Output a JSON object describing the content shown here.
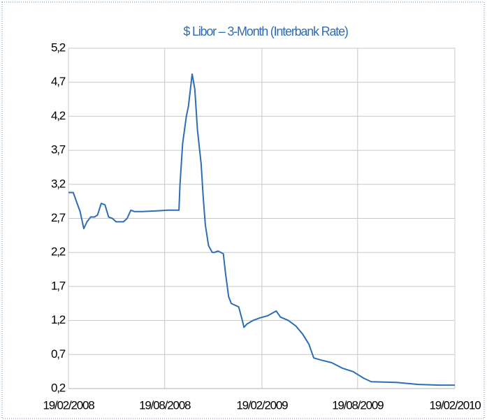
{
  "chart_data": {
    "type": "line",
    "title": "$ Libor – 3-Month (Interbank Rate)",
    "x": [
      "2008-02-19",
      "2008-02-28",
      "2008-03-05",
      "2008-03-12",
      "2008-03-19",
      "2008-03-25",
      "2008-04-01",
      "2008-04-08",
      "2008-04-14",
      "2008-04-21",
      "2008-04-28",
      "2008-05-05",
      "2008-05-12",
      "2008-05-19",
      "2008-05-26",
      "2008-06-02",
      "2008-06-09",
      "2008-06-16",
      "2008-06-23",
      "2008-07-07",
      "2008-08-04",
      "2008-08-25",
      "2008-09-15",
      "2008-09-17",
      "2008-09-22",
      "2008-09-29",
      "2008-10-03",
      "2008-10-10",
      "2008-10-15",
      "2008-10-20",
      "2008-10-27",
      "2008-10-31",
      "2008-11-04",
      "2008-11-10",
      "2008-11-17",
      "2008-11-21",
      "2008-11-28",
      "2008-12-08",
      "2008-12-12",
      "2008-12-18",
      "2008-12-23",
      "2009-01-06",
      "2009-01-13",
      "2009-01-16",
      "2009-01-22",
      "2009-02-02",
      "2009-02-16",
      "2009-03-02",
      "2009-03-18",
      "2009-03-26",
      "2009-04-10",
      "2009-04-24",
      "2009-05-07",
      "2009-05-19",
      "2009-05-28",
      "2009-06-10",
      "2009-07-01",
      "2009-07-21",
      "2009-08-10",
      "2009-08-31",
      "2009-09-14",
      "2009-11-01",
      "2009-12-12",
      "2010-01-22",
      "2010-02-19"
    ],
    "values": [
      3.08,
      3.08,
      2.95,
      2.8,
      2.55,
      2.65,
      2.72,
      2.72,
      2.75,
      2.92,
      2.9,
      2.72,
      2.7,
      2.65,
      2.65,
      2.65,
      2.7,
      2.82,
      2.8,
      2.8,
      2.81,
      2.82,
      2.82,
      3.2,
      3.8,
      4.2,
      4.35,
      4.82,
      4.6,
      4.0,
      3.5,
      3.0,
      2.6,
      2.3,
      2.2,
      2.2,
      2.22,
      2.18,
      1.9,
      1.55,
      1.45,
      1.4,
      1.2,
      1.1,
      1.15,
      1.2,
      1.24,
      1.27,
      1.34,
      1.25,
      1.2,
      1.12,
      1.0,
      0.85,
      0.65,
      0.62,
      0.58,
      0.5,
      0.45,
      0.35,
      0.3,
      0.29,
      0.26,
      0.25,
      0.25
    ],
    "color": "#2e6db4",
    "xlim": [
      "2008-02-19",
      "2010-02-19"
    ],
    "xticks": [
      {
        "value": "2008-02-19",
        "label": "19/02/2008"
      },
      {
        "value": "2008-08-19",
        "label": "19/08/2008"
      },
      {
        "value": "2009-02-19",
        "label": "19/02/2009"
      },
      {
        "value": "2009-08-19",
        "label": "19/08/2009"
      },
      {
        "value": "2010-02-19",
        "label": "19/02/2010"
      }
    ],
    "ylim": [
      0.2,
      5.2
    ],
    "yticks": [
      {
        "value": 0.2,
        "label": "0,2"
      },
      {
        "value": 0.7,
        "label": "0,7"
      },
      {
        "value": 1.2,
        "label": "1,2"
      },
      {
        "value": 1.7,
        "label": "1,7"
      },
      {
        "value": 2.2,
        "label": "2,2"
      },
      {
        "value": 2.7,
        "label": "2,7"
      },
      {
        "value": 3.2,
        "label": "3,2"
      },
      {
        "value": 3.7,
        "label": "3,7"
      },
      {
        "value": 4.2,
        "label": "4,2"
      },
      {
        "value": 4.7,
        "label": "4,7"
      },
      {
        "value": 5.2,
        "label": "5,2"
      }
    ],
    "grid": true
  }
}
